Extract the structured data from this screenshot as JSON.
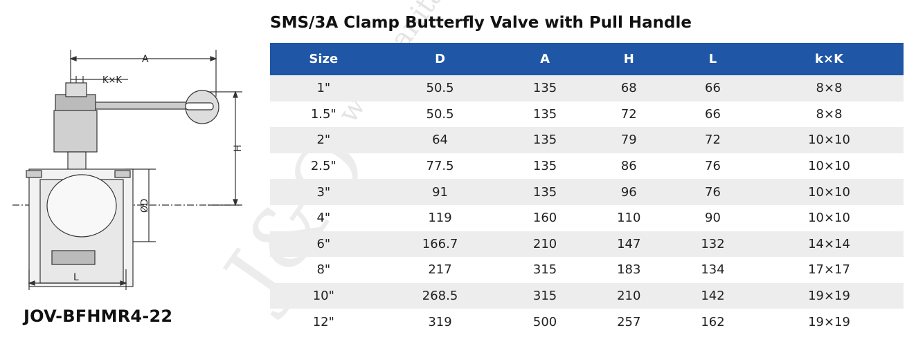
{
  "watermark": {
    "url_text": "www.sanitary",
    "brand_text": "J&O",
    "reg_mark": "®"
  },
  "drawing": {
    "label_a": "A",
    "label_kk": "K×K",
    "label_h": "H",
    "label_d": "ØD",
    "label_l": "L"
  },
  "model_code": "JOV-BFHMR4-22",
  "title": "SMS/3A Clamp Butterfly Valve with Pull Handle",
  "table": {
    "headers": [
      "Size",
      "D",
      "A",
      "H",
      "L",
      "k×K"
    ],
    "rows": [
      [
        "1\"",
        "50.5",
        "135",
        "68",
        "66",
        "8×8"
      ],
      [
        "1.5\"",
        "50.5",
        "135",
        "72",
        "66",
        "8×8"
      ],
      [
        "2\"",
        "64",
        "135",
        "79",
        "72",
        "10×10"
      ],
      [
        "2.5\"",
        "77.5",
        "135",
        "86",
        "76",
        "10×10"
      ],
      [
        "3\"",
        "91",
        "135",
        "96",
        "76",
        "10×10"
      ],
      [
        "4\"",
        "119",
        "160",
        "110",
        "90",
        "10×10"
      ],
      [
        "6\"",
        "166.7",
        "210",
        "147",
        "132",
        "14×14"
      ],
      [
        "8\"",
        "217",
        "315",
        "183",
        "134",
        "17×17"
      ],
      [
        "10\"",
        "268.5",
        "315",
        "210",
        "142",
        "19×19"
      ],
      [
        "12\"",
        "319",
        "500",
        "257",
        "162",
        "19×19"
      ]
    ]
  },
  "colors": {
    "header_bg": "#1f56a6",
    "row_shade": "#ededed"
  }
}
